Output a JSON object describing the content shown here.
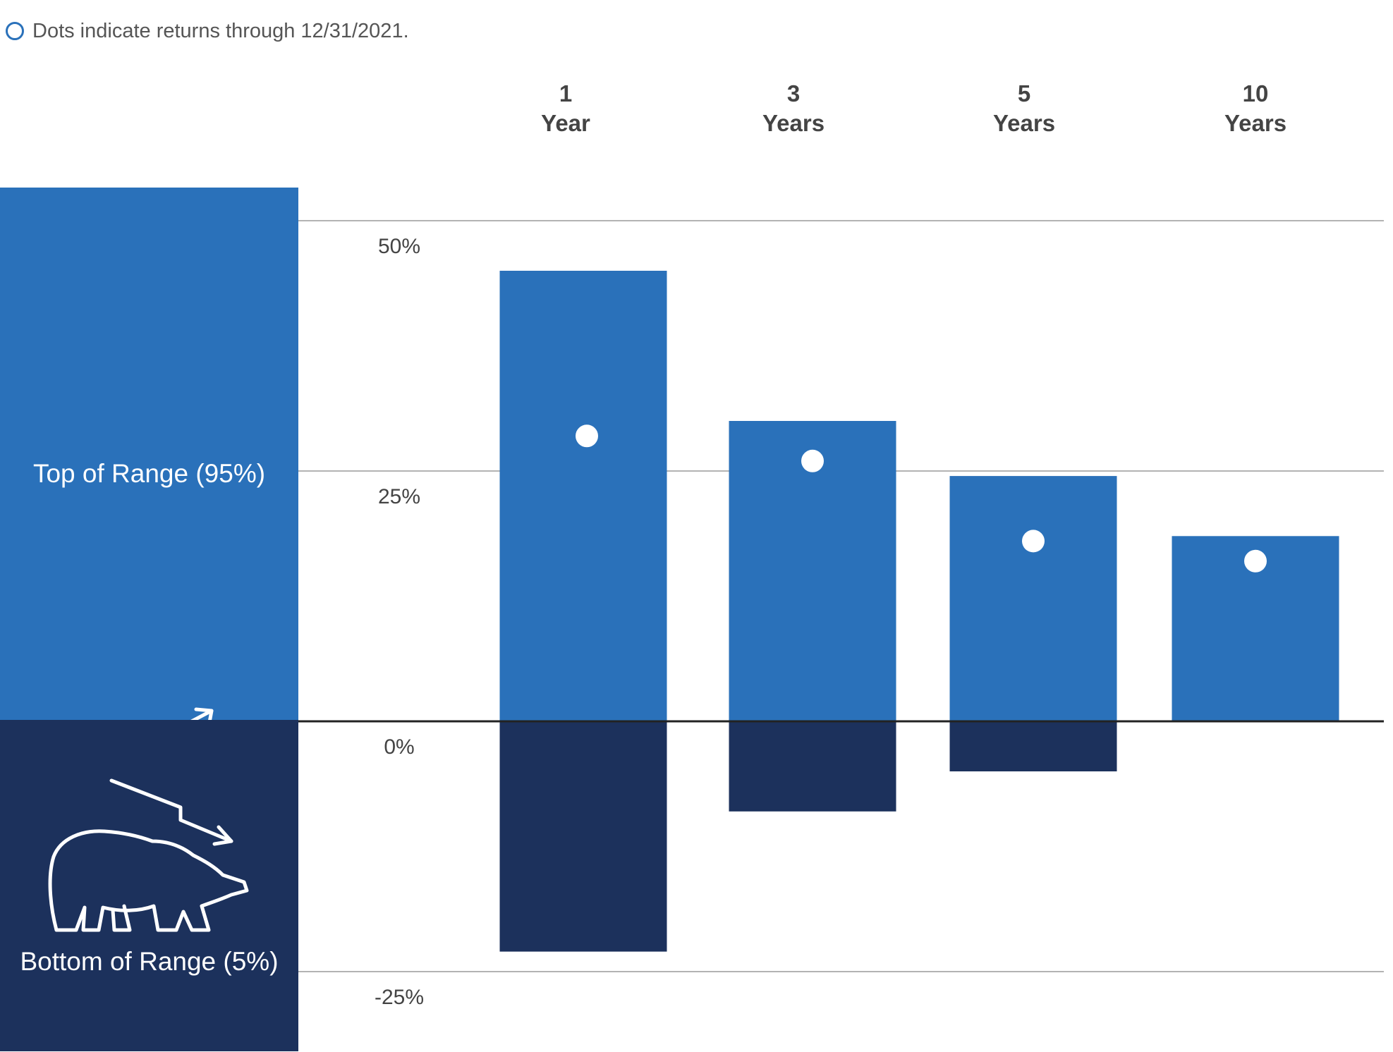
{
  "legend_note": "Dots indicate returns through 12/31/2021.",
  "panels": {
    "top_label": "Top of Range (95%)",
    "bottom_label": "Bottom of Range (5%)",
    "top_icon": "bull-rising-arrow-icon",
    "bottom_icon": "bear-falling-arrow-icon"
  },
  "columns": [
    {
      "num": "1",
      "unit": "Year"
    },
    {
      "num": "3",
      "unit": "Years"
    },
    {
      "num": "5",
      "unit": "Years"
    },
    {
      "num": "10",
      "unit": "Years"
    }
  ],
  "colors": {
    "top_bar": "#2a71ba",
    "bottom_bar": "#1c315c",
    "dot": "#ffffff",
    "zero_line": "#222222",
    "grid": "#9a9a9a"
  },
  "chart_data": {
    "type": "bar",
    "categories": [
      "1 Year",
      "3 Years",
      "5 Years",
      "10 Years"
    ],
    "series": [
      {
        "values": [
          45,
          30,
          24.5,
          18.5
        ]
      },
      {
        "values": [
          -23,
          -9,
          -5,
          0
        ]
      },
      {
        "values": [
          28.5,
          26,
          18,
          16
        ]
      }
    ],
    "ylim": [
      -25,
      50
    ],
    "yticks": [
      50,
      25,
      0,
      -25
    ],
    "ytick_labels": [
      "50%",
      "25%",
      "0%",
      "-25%"
    ],
    "grid": true
  }
}
